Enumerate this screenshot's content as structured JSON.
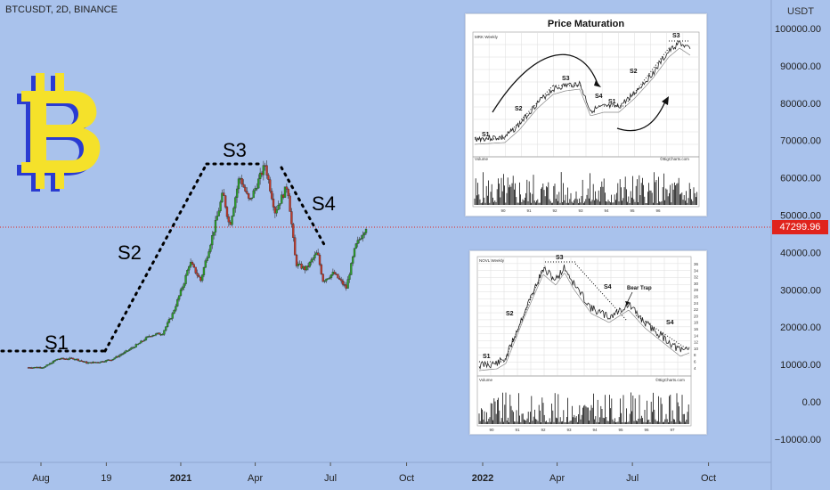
{
  "header": {
    "ticker": "BTCUSDT, 2D, BINANCE",
    "axis_title": "USDT",
    "last_price": "47299.96"
  },
  "colors": {
    "background": "#a9c2ec",
    "up_candle": "#2ca02c",
    "down_candle": "#c0392b",
    "price_line": "#e0231c",
    "stage_dots": "#000000",
    "logo_fill": "#f5e12a",
    "logo_shadow": "#2a3bd1"
  },
  "chart_data": [
    {
      "type": "candlestick",
      "title": "",
      "y_ticks": [
        -10000,
        0,
        10000,
        20000,
        30000,
        40000,
        50000,
        60000,
        70000,
        80000,
        90000,
        100000
      ],
      "y_tick_labels": [
        "−10000.00",
        "0.00",
        "10000.00",
        "20000.00",
        "30000.00",
        "40000.00",
        "50000.00",
        "60000.00",
        "70000.00",
        "80000.00",
        "90000.00",
        "100000.00"
      ],
      "ylim": [
        -14000,
        104000
      ],
      "x_labels": [
        "Aug",
        "19",
        "2021",
        "Apr",
        "Jul",
        "Oct",
        "2022",
        "Apr",
        "Jul",
        "Oct"
      ],
      "x_label_bold": [
        "2021",
        "2022"
      ],
      "price_samples": [
        [
          "2020-07-01",
          9200
        ],
        [
          "2020-07-20",
          9300
        ],
        [
          "2020-08-05",
          11500
        ],
        [
          "2020-08-25",
          11600
        ],
        [
          "2020-09-10",
          10400
        ],
        [
          "2020-09-25",
          10700
        ],
        [
          "2020-10-10",
          11400
        ],
        [
          "2020-10-25",
          13200
        ],
        [
          "2020-11-10",
          15400
        ],
        [
          "2020-11-25",
          17800
        ],
        [
          "2020-12-10",
          18400
        ],
        [
          "2020-12-22",
          23500
        ],
        [
          "2021-01-05",
          32000
        ],
        [
          "2021-01-12",
          37500
        ],
        [
          "2021-01-25",
          32500
        ],
        [
          "2021-02-10",
          46000
        ],
        [
          "2021-02-21",
          56000
        ],
        [
          "2021-03-01",
          47000
        ],
        [
          "2021-03-13",
          60500
        ],
        [
          "2021-03-25",
          53500
        ],
        [
          "2021-04-13",
          63500
        ],
        [
          "2021-04-25",
          51000
        ],
        [
          "2021-05-10",
          58000
        ],
        [
          "2021-05-20",
          37000
        ],
        [
          "2021-06-01",
          35500
        ],
        [
          "2021-06-15",
          40000
        ],
        [
          "2021-06-22",
          32500
        ],
        [
          "2021-07-05",
          34500
        ],
        [
          "2021-07-20",
          30500
        ],
        [
          "2021-07-31",
          41500
        ],
        [
          "2021-08-14",
          47300
        ]
      ],
      "last_price": 47299.96,
      "stages": [
        {
          "label": "S1"
        },
        {
          "label": "S2"
        },
        {
          "label": "S3"
        },
        {
          "label": "S4"
        }
      ]
    },
    {
      "type": "line",
      "title": "Price Maturation",
      "header_text": "MRK Weekly",
      "footer_text": "©BigCharts.com",
      "volume_label": "Volume",
      "x_labels": [
        "90",
        "91",
        "92",
        "93",
        "94",
        "95",
        "96"
      ],
      "stages": [
        {
          "label": "S1"
        },
        {
          "label": "S2"
        },
        {
          "label": "S3"
        },
        {
          "label": "S4"
        },
        {
          "label": "S1"
        },
        {
          "label": "S2"
        },
        {
          "label": "S3"
        }
      ]
    },
    {
      "type": "line",
      "title": "",
      "header_text": "NOVL Weekly",
      "footer_text": "©BigCharts.com",
      "volume_label": "Volume",
      "right_ticks": [
        "36",
        "34",
        "32",
        "30",
        "28",
        "26",
        "24",
        "22",
        "20",
        "18",
        "16",
        "14",
        "12",
        "10",
        "8",
        "6",
        "4"
      ],
      "x_labels": [
        "90",
        "91",
        "92",
        "93",
        "94",
        "95",
        "96",
        "97"
      ],
      "annotation": "Bear Trap",
      "stages": [
        {
          "label": "S1"
        },
        {
          "label": "S2"
        },
        {
          "label": "S3"
        },
        {
          "label": "S4"
        },
        {
          "label": "S4"
        }
      ]
    }
  ]
}
